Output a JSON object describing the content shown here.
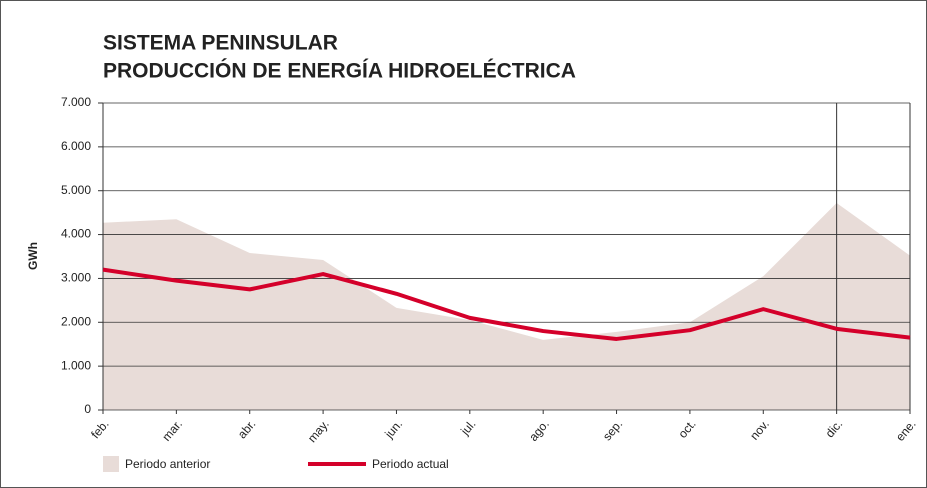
{
  "chart_data": {
    "type": "line",
    "title": [
      "SISTEMA PENINSULAR",
      "PRODUCCIÓN DE ENERGÍA HIDROELÉCTRICA"
    ],
    "y_label": "GWh",
    "categories": [
      "feb.",
      "mar.",
      "abr.",
      "may.",
      "jun.",
      "jul.",
      "ago.",
      "sep.",
      "oct.",
      "nov.",
      "dic.",
      "ene."
    ],
    "series": [
      {
        "name": "Periodo anterior",
        "style": "area",
        "color": "#e8dcd8",
        "values": [
          4270,
          4350,
          3580,
          3420,
          2330,
          2050,
          1600,
          1780,
          2000,
          3050,
          4720,
          3520
        ]
      },
      {
        "name": "Periodo actual",
        "style": "line",
        "color": "#d4002a",
        "values": [
          3200,
          2950,
          2750,
          3100,
          2650,
          2100,
          1800,
          1620,
          1820,
          2300,
          1850,
          1650
        ]
      }
    ],
    "ylim": [
      0,
      7000
    ],
    "yticks": [
      0,
      {
        "value": 1000,
        "label": "1.000"
      },
      {
        "value": 2000,
        "label": "2.000"
      },
      {
        "value": 3000,
        "label": "3.000"
      },
      {
        "value": 4000,
        "label": "4.000"
      },
      {
        "value": 5000,
        "label": "5.000"
      },
      {
        "value": 6000,
        "label": "6.000"
      },
      {
        "value": 7000,
        "label": "7.000"
      }
    ],
    "grid": true,
    "vline_category": "dic."
  }
}
